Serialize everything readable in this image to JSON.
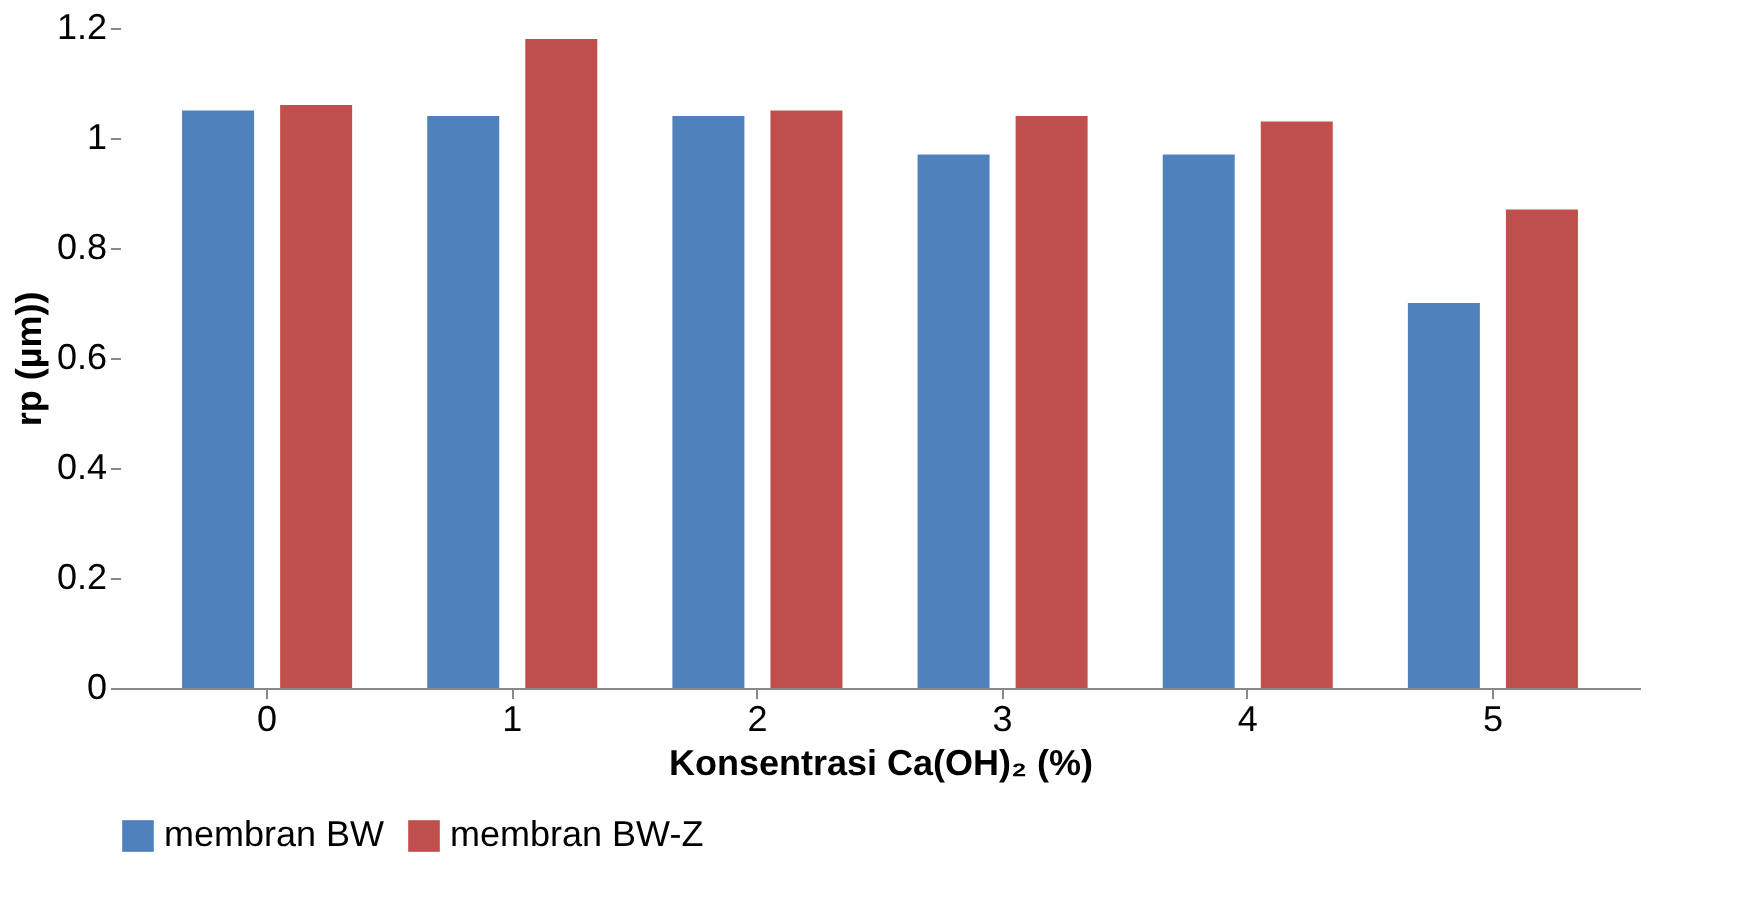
{
  "chart_data": {
    "type": "bar",
    "xlabel": "Konsentrasi Ca(OH)₂ (%)",
    "ylabel": "rp (µm))",
    "categories": [
      "0",
      "1",
      "2",
      "3",
      "4",
      "5"
    ],
    "series": [
      {
        "name": "membran BW",
        "color": "#4f81bd",
        "values": [
          1.05,
          1.04,
          1.04,
          0.97,
          0.97,
          0.7
        ]
      },
      {
        "name": "membran BW-Z",
        "color": "#c0504d",
        "values": [
          1.06,
          1.18,
          1.05,
          1.04,
          1.03,
          0.87
        ]
      }
    ],
    "ylim": [
      0,
      1.2
    ],
    "yticks": [
      0,
      0.2,
      0.4,
      0.6,
      0.8,
      1,
      1.2
    ],
    "grid": false,
    "legend": "bottom"
  }
}
